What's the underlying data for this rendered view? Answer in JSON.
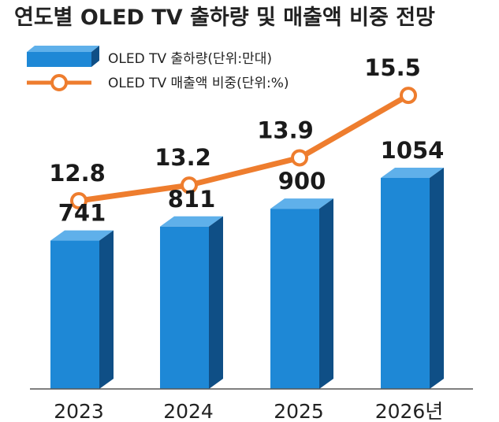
{
  "chart_data": {
    "type": "bar",
    "title": "연도별 OLED TV 출하량 및 매출액 비중 전망",
    "categories": [
      "2023",
      "2024",
      "2025",
      "2026년"
    ],
    "series": [
      {
        "name": "OLED TV 출하량(단위:만대)",
        "type": "bar",
        "values": [
          741,
          811,
          900,
          1054
        ],
        "color": "#1e88d6"
      },
      {
        "name": "OLED TV 매출액 비중(단위:%)",
        "type": "line",
        "values": [
          12.8,
          13.2,
          13.9,
          15.5
        ],
        "color": "#ee7d2e"
      }
    ],
    "value_labels": {
      "bars": [
        "741",
        "811",
        "900",
        "1054"
      ],
      "line": [
        "12.8",
        "13.2",
        "13.9",
        "15.5"
      ]
    },
    "legend_position": "top-left",
    "grid": false,
    "colors": {
      "bar_front": "#1e88d6",
      "bar_side": "#0f4f86",
      "bar_top": "#5fb0ea",
      "line": "#ee7d2e",
      "marker_fill": "#ffffff",
      "axis": "#555555"
    }
  }
}
